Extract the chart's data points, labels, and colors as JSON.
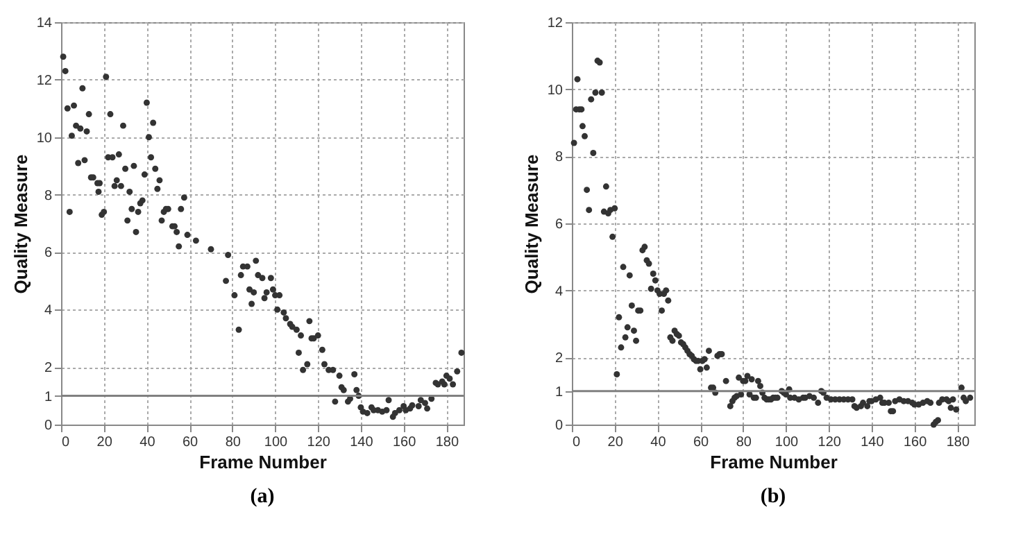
{
  "chart_data": [
    {
      "type": "scatter",
      "title": "(a)",
      "xlabel": "Frame Number",
      "ylabel": "Quality Measure",
      "xlim": [
        0,
        188
      ],
      "ylim": [
        0,
        14
      ],
      "xticks": [
        0,
        20,
        40,
        60,
        80,
        100,
        120,
        140,
        160,
        180
      ],
      "yticks": [
        0,
        1,
        2,
        4,
        6,
        8,
        10,
        12,
        14
      ],
      "grid": true,
      "marker": "circle",
      "ref_lines": [
        {
          "axis": "y",
          "value": 1,
          "color": "#808080"
        }
      ],
      "series": [
        {
          "color": "#333333",
          "x": [
            1,
            2,
            3,
            4,
            5,
            6,
            7,
            8,
            9,
            10,
            11,
            12,
            13,
            14,
            15,
            17,
            17.5,
            18,
            19,
            20,
            21,
            22,
            23,
            24,
            25,
            26,
            27,
            28,
            29,
            30,
            31,
            32,
            33,
            34,
            35,
            36,
            37,
            38,
            39,
            40,
            41,
            42,
            43,
            44,
            45,
            46,
            47,
            48,
            49,
            50,
            52,
            53,
            54,
            55,
            56,
            57.5,
            59,
            63,
            70,
            77,
            78,
            81,
            83,
            84,
            85,
            87,
            88,
            89,
            90,
            91,
            92,
            94,
            95,
            96,
            98,
            99,
            100,
            101,
            102,
            104,
            105,
            107,
            108,
            110,
            111,
            112,
            113,
            115,
            116,
            117,
            118,
            120,
            122,
            123,
            125,
            127,
            128,
            130,
            131,
            132,
            134,
            135,
            137,
            138,
            139,
            140,
            141,
            143,
            145,
            146,
            148,
            150,
            152,
            153,
            155,
            156,
            158,
            160,
            161,
            163,
            164,
            167,
            168,
            170,
            171,
            173,
            175,
            176,
            178,
            179,
            180,
            181.5,
            183,
            185,
            187
          ],
          "values": [
            12.8,
            12.3,
            11.0,
            7.4,
            10.05,
            11.1,
            10.4,
            9.1,
            10.3,
            11.7,
            9.2,
            10.2,
            10.8,
            8.6,
            8.6,
            8.4,
            8.1,
            8.4,
            7.3,
            7.4,
            12.1,
            9.3,
            10.8,
            9.3,
            8.3,
            8.5,
            9.4,
            8.3,
            10.4,
            8.9,
            7.1,
            8.1,
            7.5,
            9.0,
            6.7,
            7.4,
            7.7,
            7.8,
            8.7,
            11.2,
            10.0,
            9.3,
            10.5,
            8.9,
            8.2,
            8.5,
            7.1,
            7.4,
            7.5,
            7.5,
            6.9,
            6.9,
            6.7,
            6.2,
            7.5,
            7.9,
            6.6,
            6.4,
            6.1,
            5.0,
            5.9,
            4.5,
            3.3,
            5.2,
            5.5,
            5.5,
            4.7,
            4.2,
            4.6,
            5.7,
            5.2,
            5.1,
            4.4,
            4.6,
            5.1,
            4.7,
            4.5,
            4.0,
            4.5,
            3.9,
            3.7,
            3.5,
            3.4,
            3.3,
            2.5,
            3.1,
            1.9,
            2.1,
            3.6,
            3.0,
            3.0,
            3.1,
            2.6,
            2.1,
            1.9,
            1.9,
            0.8,
            1.7,
            1.3,
            1.2,
            0.8,
            0.9,
            1.75,
            1.2,
            1.0,
            0.6,
            0.45,
            0.4,
            0.6,
            0.5,
            0.5,
            0.45,
            0.5,
            0.85,
            0.27,
            0.4,
            0.5,
            0.64,
            0.5,
            0.56,
            0.67,
            0.64,
            0.85,
            0.75,
            0.56,
            0.9,
            1.45,
            1.4,
            1.5,
            1.4,
            1.7,
            1.6,
            1.4,
            1.85,
            2.5
          ]
        }
      ]
    },
    {
      "type": "scatter",
      "title": "(b)",
      "xlabel": "Frame Number",
      "ylabel": "Quality Measure",
      "xlim": [
        0,
        188
      ],
      "ylim": [
        0,
        12
      ],
      "xticks": [
        0,
        20,
        40,
        60,
        80,
        100,
        120,
        140,
        160,
        180
      ],
      "yticks": [
        0,
        1,
        2,
        4,
        6,
        8,
        10,
        12
      ],
      "grid": true,
      "marker": "circle",
      "ref_lines": [
        {
          "axis": "y",
          "value": 1,
          "color": "#808080"
        }
      ],
      "series": [
        {
          "color": "#333333",
          "x": [
            1,
            2,
            2.6,
            3.5,
            4.5,
            5,
            6,
            7,
            8,
            9,
            10,
            11,
            12,
            13,
            14,
            15,
            16,
            17,
            18,
            19,
            20,
            21,
            22,
            23,
            24,
            25,
            26,
            27,
            28,
            29,
            30,
            31,
            32,
            33,
            34,
            35,
            36,
            37,
            38,
            39,
            40,
            41,
            42,
            43,
            44,
            45,
            46,
            47,
            48,
            49,
            50,
            51,
            52,
            53,
            54,
            55,
            56,
            57,
            58,
            59,
            60,
            61,
            62,
            63,
            64,
            65,
            66,
            67,
            68,
            69,
            70,
            72,
            74,
            75,
            76,
            77,
            78,
            79,
            80,
            81,
            82,
            83,
            84,
            85,
            86,
            87,
            88,
            89,
            90,
            91,
            92,
            93,
            94,
            95,
            96,
            98,
            99,
            100,
            101.5,
            102,
            104,
            106,
            108,
            109,
            111,
            113,
            115,
            116.5,
            117.5,
            119,
            121,
            123,
            125,
            127,
            129,
            131,
            132,
            133,
            135,
            136,
            138,
            139,
            140,
            142,
            144,
            145,
            146,
            148,
            149,
            150,
            151,
            153,
            155,
            157,
            159,
            160,
            162,
            164,
            166,
            167.5,
            169,
            170,
            171,
            171.5,
            173,
            175,
            176,
            177,
            178,
            179.5,
            182,
            183,
            184,
            186
          ],
          "values": [
            8.4,
            9.4,
            10.3,
            9.4,
            9.4,
            8.9,
            8.6,
            7.0,
            6.4,
            9.7,
            8.1,
            9.9,
            10.85,
            10.8,
            9.9,
            6.35,
            7.1,
            6.3,
            6.4,
            5.6,
            6.45,
            1.5,
            3.2,
            2.3,
            4.7,
            2.6,
            2.9,
            4.45,
            3.55,
            2.8,
            2.5,
            3.4,
            3.4,
            5.2,
            5.3,
            4.9,
            4.8,
            4.05,
            4.5,
            4.3,
            4.0,
            3.9,
            3.4,
            3.9,
            4.0,
            3.7,
            2.6,
            2.5,
            2.8,
            2.7,
            2.65,
            2.45,
            2.4,
            2.3,
            2.2,
            2.1,
            2.05,
            1.95,
            1.9,
            1.9,
            1.65,
            1.9,
            1.95,
            1.7,
            2.2,
            1.1,
            1.1,
            0.95,
            2.05,
            2.1,
            2.1,
            1.3,
            0.55,
            0.7,
            0.8,
            0.85,
            1.4,
            0.9,
            1.3,
            1.3,
            1.45,
            0.9,
            1.35,
            0.8,
            0.8,
            1.3,
            1.15,
            0.95,
            0.8,
            0.75,
            0.75,
            0.75,
            0.8,
            0.8,
            0.8,
            1.0,
            0.95,
            0.9,
            1.05,
            0.8,
            0.8,
            0.75,
            0.8,
            0.8,
            0.85,
            0.8,
            0.65,
            1.0,
            0.95,
            0.8,
            0.75,
            0.75,
            0.75,
            0.75,
            0.75,
            0.75,
            0.55,
            0.5,
            0.55,
            0.65,
            0.55,
            0.7,
            0.7,
            0.75,
            0.8,
            0.65,
            0.65,
            0.65,
            0.4,
            0.4,
            0.7,
            0.75,
            0.7,
            0.7,
            0.65,
            0.6,
            0.6,
            0.65,
            0.7,
            0.65,
            0.0,
            0.08,
            0.13,
            0.65,
            0.75,
            0.75,
            0.7,
            0.5,
            0.75,
            0.45,
            1.1,
            0.8,
            0.7,
            0.8
          ]
        }
      ]
    }
  ]
}
